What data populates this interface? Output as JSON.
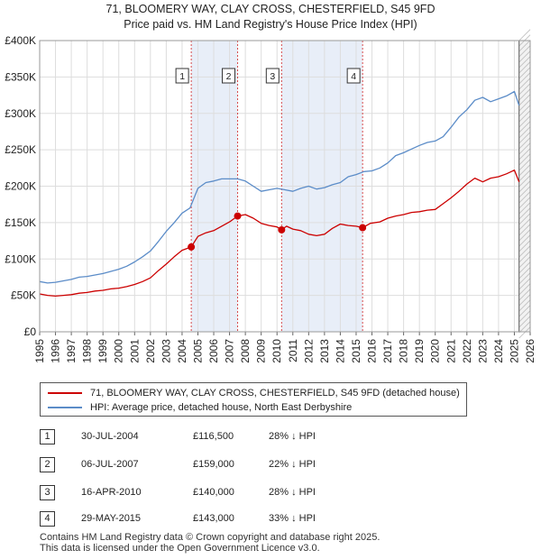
{
  "chart_data": {
    "type": "line",
    "title": "71, BLOOMERY WAY, CLAY CROSS, CHESTERFIELD, S45 9FD",
    "subtitle": "Price paid vs. HM Land Registry's House Price Index (HPI)",
    "xlim": [
      1995,
      2026
    ],
    "ylim": [
      0,
      400000
    ],
    "y_ticks": [
      {
        "value": 0,
        "label": "£0"
      },
      {
        "value": 50000,
        "label": "£50K"
      },
      {
        "value": 100000,
        "label": "£100K"
      },
      {
        "value": 150000,
        "label": "£150K"
      },
      {
        "value": 200000,
        "label": "£200K"
      },
      {
        "value": 250000,
        "label": "£250K"
      },
      {
        "value": 300000,
        "label": "£300K"
      },
      {
        "value": 350000,
        "label": "£350K"
      },
      {
        "value": 400000,
        "label": "£400K"
      }
    ],
    "x_ticks": [
      "1995",
      "1996",
      "1997",
      "1998",
      "1999",
      "2000",
      "2001",
      "2002",
      "2003",
      "2004",
      "2005",
      "2006",
      "2007",
      "2008",
      "2009",
      "2010",
      "2011",
      "2012",
      "2013",
      "2014",
      "2015",
      "2016",
      "2017",
      "2018",
      "2019",
      "2020",
      "2021",
      "2022",
      "2023",
      "2024",
      "2025",
      "2026"
    ],
    "series": [
      {
        "name": "71, BLOOMERY WAY, CLAY CROSS, CHESTERFIELD, S45 9FD (detached house)",
        "color": "#cc0000",
        "x": [
          1995,
          1995.5,
          1996,
          1996.5,
          1997,
          1997.5,
          1998,
          1998.5,
          1999,
          1999.5,
          2000,
          2000.5,
          2001,
          2001.5,
          2002,
          2002.5,
          2003,
          2003.5,
          2004,
          2004.58,
          2005,
          2005.5,
          2006,
          2006.5,
          2007,
          2007.51,
          2008,
          2008.5,
          2009,
          2009.5,
          2010,
          2010.29,
          2010.6,
          2011,
          2011.5,
          2012,
          2012.5,
          2013,
          2013.5,
          2014,
          2014.5,
          2015,
          2015.41,
          2015.9,
          2016.5,
          2017,
          2017.5,
          2018,
          2018.5,
          2019,
          2019.5,
          2020,
          2020.5,
          2021,
          2021.5,
          2022,
          2022.5,
          2023,
          2023.5,
          2024,
          2024.5,
          2025,
          2025.3
        ],
        "y": [
          52000,
          50000,
          49000,
          50000,
          51000,
          53000,
          54000,
          56000,
          57000,
          59000,
          60000,
          62000,
          65000,
          69000,
          74000,
          84000,
          93000,
          103000,
          112000,
          116500,
          131000,
          136000,
          139000,
          145000,
          151000,
          159000,
          161000,
          156000,
          149000,
          146000,
          144000,
          140000,
          145000,
          141000,
          139000,
          134000,
          132000,
          134000,
          142000,
          148000,
          146000,
          145000,
          143000,
          149000,
          151000,
          156000,
          159000,
          161000,
          164000,
          165000,
          167000,
          168000,
          176000,
          184000,
          193000,
          203000,
          211000,
          206000,
          211000,
          213000,
          217000,
          222000,
          206000
        ]
      },
      {
        "name": "HPI: Average price, detached house, North East Derbyshire",
        "color": "#5b8cc8",
        "x": [
          1995,
          1995.5,
          1996,
          1996.5,
          1997,
          1997.5,
          1998,
          1998.5,
          1999,
          1999.5,
          2000,
          2000.5,
          2001,
          2001.5,
          2002,
          2002.5,
          2003,
          2003.5,
          2004,
          2004.5,
          2005,
          2005.5,
          2006,
          2006.5,
          2007,
          2007.5,
          2008,
          2008.5,
          2009,
          2009.5,
          2010,
          2010.5,
          2011,
          2011.5,
          2012,
          2012.5,
          2013,
          2013.5,
          2014,
          2014.5,
          2015,
          2015.5,
          2016,
          2016.5,
          2017,
          2017.5,
          2018,
          2018.5,
          2019,
          2019.5,
          2020,
          2020.5,
          2021,
          2021.5,
          2022,
          2022.5,
          2023,
          2023.5,
          2024,
          2024.5,
          2025,
          2025.3
        ],
        "y": [
          69000,
          67000,
          68000,
          70000,
          72000,
          75000,
          76000,
          78000,
          80000,
          83000,
          86000,
          90000,
          96000,
          103000,
          111000,
          124000,
          138000,
          150000,
          163000,
          170000,
          197000,
          205000,
          207000,
          210000,
          210000,
          210000,
          207000,
          200000,
          193000,
          195000,
          197000,
          195000,
          193000,
          197000,
          200000,
          196000,
          198000,
          202000,
          205000,
          213000,
          216000,
          220000,
          221000,
          225000,
          232000,
          242000,
          246000,
          251000,
          256000,
          260000,
          262000,
          268000,
          281000,
          295000,
          305000,
          318000,
          322000,
          316000,
          320000,
          324000,
          330000,
          311000
        ]
      }
    ],
    "sales": [
      {
        "num": "1",
        "date": "30-JUL-2004",
        "price": "£116,500",
        "hpi": "28% ↓ HPI",
        "x": 2004.58,
        "y": 116500
      },
      {
        "num": "2",
        "date": "06-JUL-2007",
        "price": "£159,000",
        "hpi": "22% ↓ HPI",
        "x": 2007.51,
        "y": 159000
      },
      {
        "num": "3",
        "date": "16-APR-2010",
        "price": "£140,000",
        "hpi": "28% ↓ HPI",
        "x": 2010.29,
        "y": 140000
      },
      {
        "num": "4",
        "date": "29-MAY-2015",
        "price": "£143,000",
        "hpi": "33% ↓ HPI",
        "x": 2015.41,
        "y": 143000
      }
    ],
    "shaded_periods": [
      [
        2004.58,
        2007.51
      ],
      [
        2010.29,
        2015.41
      ]
    ],
    "forecast_start": 2025.3
  },
  "legend": {
    "property": "71, BLOOMERY WAY, CLAY CROSS, CHESTERFIELD, S45 9FD (detached house)",
    "hpi": "HPI: Average price, detached house, North East Derbyshire"
  },
  "footer": {
    "line1": "Contains HM Land Registry data © Crown copyright and database right 2025.",
    "line2": "This data is licensed under the Open Government Licence v3.0."
  },
  "colors": {
    "property": "#cc0000",
    "hpi": "#5b8cc8",
    "shade": "#e8eef8",
    "grid": "#dddddd"
  }
}
